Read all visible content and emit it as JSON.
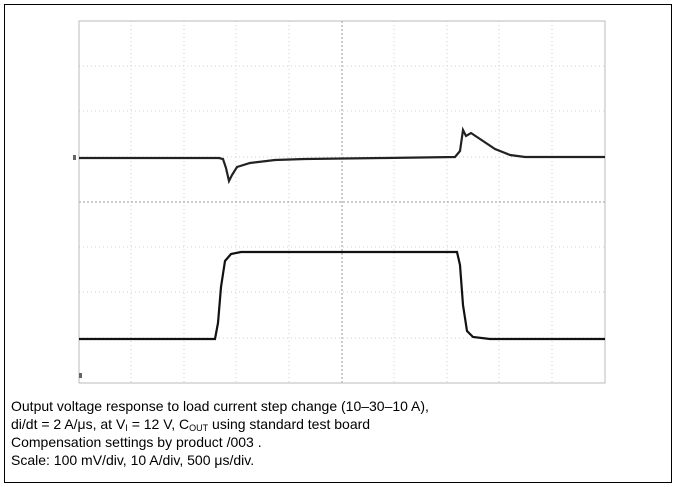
{
  "caption": {
    "lines": [
      "Output voltage response to load current step change (10–30–10 A),",
      [
        "di/dt = 2 A/μs, at V",
        "I",
        " = 12 V, C",
        "OUT",
        " using standard test board"
      ],
      "Compensation settings by product /003 .",
      "Scale: 100 mV/div, 10 A/div, 500 μs/div."
    ]
  }
}
